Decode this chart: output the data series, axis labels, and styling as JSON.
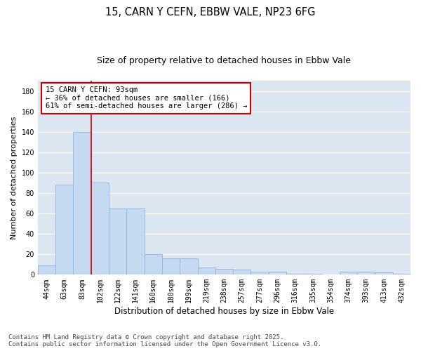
{
  "title": "15, CARN Y CEFN, EBBW VALE, NP23 6FG",
  "subtitle": "Size of property relative to detached houses in Ebbw Vale",
  "xlabel": "Distribution of detached houses by size in Ebbw Vale",
  "ylabel": "Number of detached properties",
  "categories": [
    "44sqm",
    "63sqm",
    "83sqm",
    "102sqm",
    "122sqm",
    "141sqm",
    "160sqm",
    "180sqm",
    "199sqm",
    "219sqm",
    "238sqm",
    "257sqm",
    "277sqm",
    "296sqm",
    "316sqm",
    "335sqm",
    "354sqm",
    "374sqm",
    "393sqm",
    "413sqm",
    "432sqm"
  ],
  "values": [
    9,
    88,
    140,
    90,
    65,
    65,
    20,
    16,
    16,
    7,
    6,
    5,
    3,
    3,
    1,
    1,
    0,
    3,
    3,
    2,
    1
  ],
  "bar_color": "#c5d9f1",
  "bar_edge_color": "#8db4e2",
  "vline_color": "#cc0000",
  "annotation_text": "15 CARN Y CEFN: 93sqm\n← 36% of detached houses are smaller (166)\n61% of semi-detached houses are larger (286) →",
  "annotation_box_color": "#cc0000",
  "ylim": [
    0,
    190
  ],
  "yticks": [
    0,
    20,
    40,
    60,
    80,
    100,
    120,
    140,
    160,
    180
  ],
  "background_color": "#ffffff",
  "plot_bg_color": "#dce6f1",
  "grid_color": "#ffffff",
  "footnote": "Contains HM Land Registry data © Crown copyright and database right 2025.\nContains public sector information licensed under the Open Government Licence v3.0.",
  "title_fontsize": 10.5,
  "subtitle_fontsize": 9,
  "xlabel_fontsize": 8.5,
  "ylabel_fontsize": 8,
  "tick_fontsize": 7,
  "annotation_fontsize": 7.5,
  "footnote_fontsize": 6.5
}
